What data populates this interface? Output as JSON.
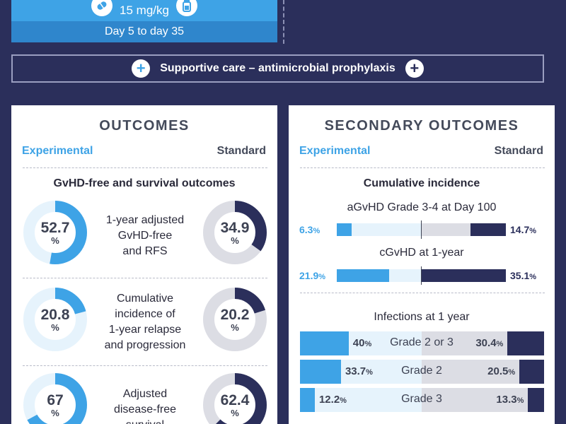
{
  "header": {
    "dose": "15 mg/kg",
    "schedule": "Day 5 to day 35",
    "supportive": "Supportive care – antimicrobial prophylaxis"
  },
  "outcomes": {
    "title": "OUTCOMES",
    "col_exp": "Experimental",
    "col_std": "Standard",
    "subtitle": "GvHD-free and survival outcomes",
    "pct_sign": "%",
    "rows": [
      {
        "label_lines": [
          "1-year adjusted",
          "GvHD-free",
          "and RFS"
        ],
        "exp": "52.7",
        "std": "34.9"
      },
      {
        "label_lines": [
          "Cumulative",
          "incidence of",
          "1-year relapse",
          "and progression"
        ],
        "exp": "20.8",
        "std": "20.2"
      },
      {
        "label_lines": [
          "Adjusted",
          "disease-free",
          "survival"
        ],
        "exp": "67",
        "std": "62.4"
      }
    ]
  },
  "secondary": {
    "title": "SECONDARY OUTCOMES",
    "col_exp": "Experimental",
    "col_std": "Standard",
    "subtitle": "Cumulative incidence",
    "pct_sign": "%",
    "incidence": [
      {
        "label": "aGvHD Grade 3-4 at Day 100",
        "exp": "6.3",
        "std": "14.7"
      },
      {
        "label": "cGvHD at 1-year",
        "exp": "21.9",
        "std": "35.1"
      }
    ],
    "infections_title": "Infections at 1 year",
    "infections": [
      {
        "label": "Grade 2 or 3",
        "exp": "40",
        "std": "30.4"
      },
      {
        "label": "Grade 2",
        "exp": "33.7",
        "std": "20.5"
      },
      {
        "label": "Grade 3",
        "exp": "12.2",
        "std": "13.3"
      }
    ]
  },
  "chart_data": [
    {
      "type": "pie",
      "title": "GvHD-free and survival outcomes",
      "categories": [
        "1-year adjusted GvHD-free and RFS",
        "Cumulative incidence of 1-year relapse and progression",
        "Adjusted disease-free survival"
      ],
      "series": [
        {
          "name": "Experimental",
          "values": [
            52.7,
            20.8,
            67
          ]
        },
        {
          "name": "Standard",
          "values": [
            34.9,
            20.2,
            62.4
          ]
        }
      ]
    },
    {
      "type": "bar",
      "title": "Cumulative incidence",
      "categories": [
        "aGvHD Grade 3-4 at Day 100",
        "cGvHD at 1-year"
      ],
      "series": [
        {
          "name": "Experimental",
          "values": [
            6.3,
            21.9
          ]
        },
        {
          "name": "Standard",
          "values": [
            14.7,
            35.1
          ]
        }
      ]
    },
    {
      "type": "bar",
      "title": "Infections at 1 year",
      "categories": [
        "Grade 2 or 3",
        "Grade 2",
        "Grade 3"
      ],
      "series": [
        {
          "name": "Experimental",
          "values": [
            40,
            33.7,
            12.2
          ]
        },
        {
          "name": "Standard",
          "values": [
            30.4,
            20.5,
            13.3
          ]
        }
      ]
    }
  ],
  "colors": {
    "experimental": "#3ea3e6",
    "experimental_light": "#e6f3fc",
    "standard": "#2b2f5b",
    "standard_light": "#dcdde4",
    "background": "#2b2f5b"
  }
}
